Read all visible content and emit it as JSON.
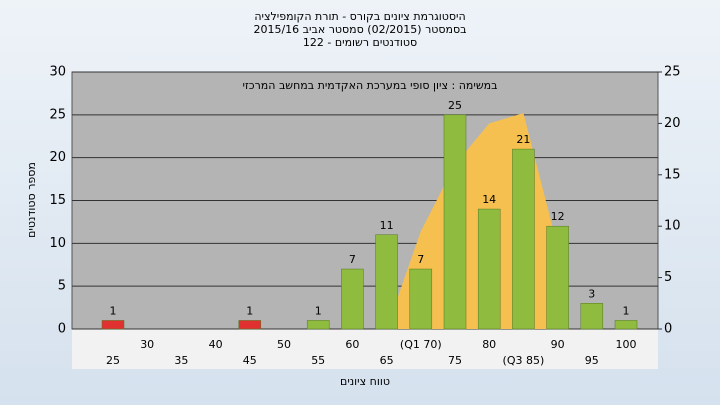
{
  "chart_data": {
    "type": "bar",
    "title": [
      "היסטוגרמת ציונים בקורס - תורת הקומפילציה",
      "בסמסטר (02/2015) סמסטר אביב 2015/16",
      "סטודנטים רשומים - 122"
    ],
    "subtitle": "במשימה : ציון סופי במערכת האקדמית במחשב המרכזי",
    "x_label": "טווח ציונים",
    "y_label": "מספר סטודנטים",
    "categories": [
      "25",
      "30",
      "35",
      "40",
      "45",
      "50",
      "55",
      "60",
      "65",
      "(Q1 70)",
      "75",
      "80",
      "(Q3 85)",
      "90",
      "95",
      "100"
    ],
    "values": [
      1,
      0,
      0,
      0,
      1,
      0,
      1,
      7,
      11,
      7,
      25,
      14,
      21,
      12,
      3,
      1
    ],
    "colors": [
      "#e03030",
      "#8fbc3f",
      "#8fbc3f",
      "#8fbc3f",
      "#e03030",
      "#8fbc3f",
      "#8fbc3f",
      "#8fbc3f",
      "#8fbc3f",
      "#8fbc3f",
      "#8fbc3f",
      "#8fbc3f",
      "#8fbc3f",
      "#8fbc3f",
      "#8fbc3f",
      "#8fbc3f"
    ],
    "series": [
      {
        "color": "#f5c050",
        "axis": "y2",
        "values": [
          null,
          null,
          null,
          null,
          null,
          null,
          null,
          null,
          0,
          9.5,
          16,
          20,
          21,
          8,
          null,
          null
        ]
      }
    ],
    "ylim": [
      0,
      30
    ],
    "yticks": [
      0,
      5,
      10,
      15,
      20,
      25,
      30
    ],
    "y2lim": [
      0,
      25
    ],
    "y2ticks": [
      0,
      5,
      10,
      15,
      20,
      25
    ],
    "grid": true
  }
}
